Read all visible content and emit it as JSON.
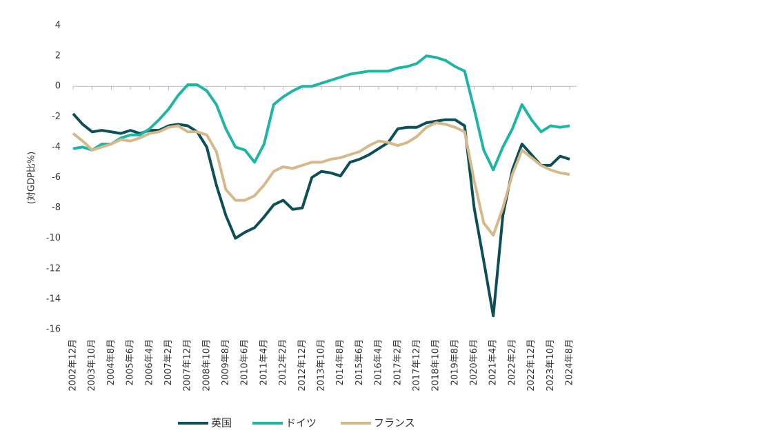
{
  "chart_data": {
    "type": "line",
    "y_label": "(対GDP比%)",
    "categories": [
      "2002年12月",
      null,
      "2003年10月",
      null,
      "2004年8月",
      null,
      "2005年6月",
      null,
      "2006年4月",
      null,
      "2007年2月",
      null,
      "2007年12月",
      null,
      "2008年10月",
      null,
      "2009年8月",
      null,
      "2010年6月",
      null,
      "2011年4月",
      null,
      "2012年2月",
      null,
      "2012年12月",
      null,
      "2013年10月",
      null,
      "2014年8月",
      null,
      "2015年6月",
      null,
      "2016年4月",
      null,
      "2017年2月",
      null,
      "2017年12月",
      null,
      "2018年10月",
      null,
      "2019年8月",
      null,
      "2020年6月",
      null,
      "2021年4月",
      null,
      "2022年2月",
      null,
      "2022年12月",
      null,
      "2023年10月",
      null,
      "2024年8月"
    ],
    "series": [
      {
        "name": "英国",
        "color": "#0d4f57",
        "values": [
          -1.8,
          -2.5,
          -3.0,
          -2.9,
          -3.0,
          -3.1,
          -2.9,
          -3.1,
          -2.9,
          -2.9,
          -2.6,
          -2.5,
          -2.6,
          -3.0,
          -4.0,
          -6.5,
          -8.5,
          -10.0,
          -9.6,
          -9.3,
          -8.6,
          -7.8,
          -7.5,
          -8.1,
          -8.0,
          -6.0,
          -5.6,
          -5.7,
          -5.9,
          -5.0,
          -4.8,
          -4.5,
          -4.1,
          -3.7,
          -2.8,
          -2.7,
          -2.7,
          -2.4,
          -2.3,
          -2.2,
          -2.2,
          -2.6,
          -8.0,
          -11.5,
          -15.1,
          -8.5,
          -5.5,
          -3.8,
          -4.5,
          -5.2,
          -5.2,
          -4.6,
          -4.8
        ]
      },
      {
        "name": "ドイツ",
        "color": "#1fb5a5",
        "values": [
          -4.1,
          -4.0,
          -4.2,
          -3.8,
          -3.8,
          -3.4,
          -3.2,
          -3.2,
          -2.8,
          -2.2,
          -1.5,
          -0.6,
          0.1,
          0.1,
          -0.3,
          -1.2,
          -2.8,
          -4.0,
          -4.2,
          -5.0,
          -3.8,
          -1.2,
          -0.7,
          -0.3,
          0.0,
          0.0,
          0.2,
          0.4,
          0.6,
          0.8,
          0.9,
          1.0,
          1.0,
          1.0,
          1.2,
          1.3,
          1.5,
          2.0,
          1.9,
          1.7,
          1.3,
          1.0,
          -1.5,
          -4.2,
          -5.5,
          -4.0,
          -2.8,
          -1.2,
          -2.2,
          -3.0,
          -2.6,
          -2.7,
          -2.6
        ]
      },
      {
        "name": "フランス",
        "color": "#d6b98a",
        "values": [
          -3.1,
          -3.6,
          -4.2,
          -4.0,
          -3.8,
          -3.5,
          -3.6,
          -3.4,
          -3.1,
          -3.0,
          -2.7,
          -2.6,
          -3.0,
          -3.0,
          -3.2,
          -4.3,
          -6.8,
          -7.5,
          -7.5,
          -7.2,
          -6.5,
          -5.6,
          -5.3,
          -5.4,
          -5.2,
          -5.0,
          -5.0,
          -4.8,
          -4.7,
          -4.5,
          -4.3,
          -3.9,
          -3.6,
          -3.7,
          -3.9,
          -3.7,
          -3.3,
          -2.7,
          -2.4,
          -2.5,
          -2.7,
          -3.0,
          -6.2,
          -9.0,
          -9.8,
          -8.0,
          -5.8,
          -4.2,
          -4.7,
          -5.2,
          -5.5,
          -5.7,
          -5.8
        ]
      }
    ],
    "ylim": [
      -16,
      4
    ],
    "yticks": [
      -16,
      -14,
      -12,
      -10,
      -8,
      -6,
      -4,
      -2,
      0,
      2,
      4
    ],
    "legend": "bottom"
  }
}
